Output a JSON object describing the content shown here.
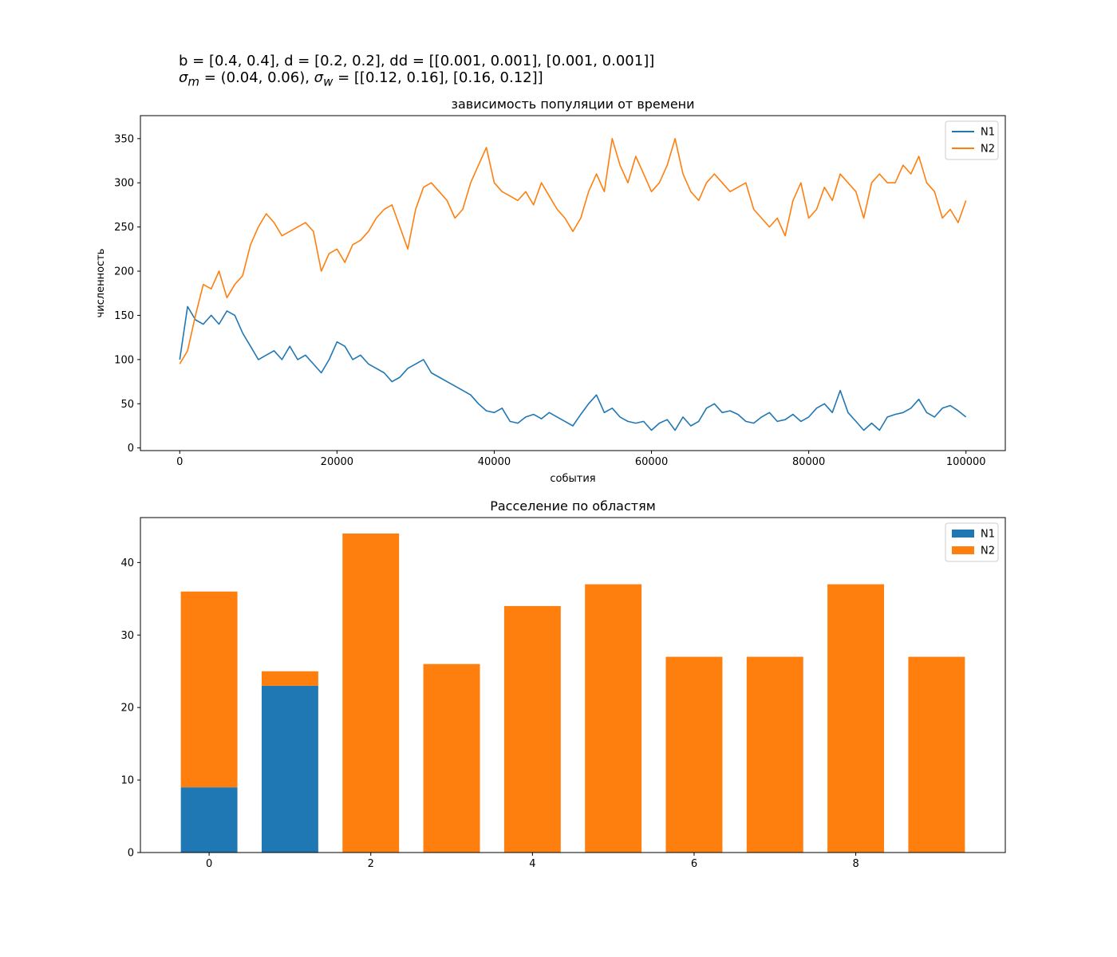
{
  "suptitle": {
    "line1": "b = [0.4, 0.4], d = [0.2, 0.2], dd = [[0.001, 0.001], [0.001, 0.001]]",
    "line2": {
      "sigma": "σ",
      "sub_m": "m",
      "eq_m": " = (0.04, 0.06), ",
      "sub_w": "w",
      "eq_w": " = [[0.12, 0.16], [0.16, 0.12]]"
    }
  },
  "colors": {
    "N1": "#1f77b4",
    "N2": "#ff7f0e"
  },
  "chart_data": [
    {
      "type": "line",
      "title": "зависимость популяции от времени",
      "xlabel": "события",
      "ylabel": "численность",
      "xlim": [
        -5000,
        105000
      ],
      "ylim": [
        -3,
        376
      ],
      "xticks": [
        0,
        20000,
        40000,
        60000,
        80000,
        100000
      ],
      "yticks": [
        0,
        50,
        100,
        150,
        200,
        250,
        300,
        350
      ],
      "legend": "top-right",
      "grid": false,
      "series": [
        {
          "name": "N1",
          "color": "#1f77b4",
          "x": [
            0,
            1000,
            2000,
            3000,
            4000,
            5000,
            6000,
            7000,
            8000,
            9000,
            10000,
            11000,
            12000,
            13000,
            14000,
            15000,
            16000,
            17000,
            18000,
            19000,
            20000,
            21000,
            22000,
            23000,
            24000,
            25000,
            26000,
            27000,
            28000,
            29000,
            30000,
            31000,
            32000,
            33000,
            34000,
            35000,
            36000,
            37000,
            38000,
            39000,
            40000,
            41000,
            42000,
            43000,
            44000,
            45000,
            46000,
            47000,
            48000,
            49000,
            50000,
            51000,
            52000,
            53000,
            54000,
            55000,
            56000,
            57000,
            58000,
            59000,
            60000,
            61000,
            62000,
            63000,
            64000,
            65000,
            66000,
            67000,
            68000,
            69000,
            70000,
            71000,
            72000,
            73000,
            74000,
            75000,
            76000,
            77000,
            78000,
            79000,
            80000,
            81000,
            82000,
            83000,
            84000,
            85000,
            86000,
            87000,
            88000,
            89000,
            90000,
            91000,
            92000,
            93000,
            94000,
            95000,
            96000,
            97000,
            98000,
            99000,
            100000
          ],
          "y": [
            100,
            160,
            145,
            140,
            150,
            140,
            155,
            150,
            130,
            115,
            100,
            105,
            110,
            100,
            115,
            100,
            105,
            95,
            85,
            100,
            120,
            115,
            100,
            105,
            95,
            90,
            85,
            75,
            80,
            90,
            95,
            100,
            85,
            80,
            75,
            70,
            65,
            60,
            50,
            42,
            40,
            45,
            30,
            28,
            35,
            38,
            33,
            40,
            35,
            30,
            25,
            38,
            50,
            60,
            40,
            45,
            35,
            30,
            28,
            30,
            20,
            28,
            32,
            20,
            35,
            25,
            30,
            45,
            50,
            40,
            42,
            38,
            30,
            28,
            35,
            40,
            30,
            32,
            38,
            30,
            35,
            45,
            50,
            40,
            65,
            40,
            30,
            20,
            28,
            20,
            35,
            38,
            40,
            45,
            55,
            40,
            35,
            45,
            48,
            42,
            35
          ]
        },
        {
          "name": "N2",
          "color": "#ff7f0e",
          "x": [
            0,
            1000,
            2000,
            3000,
            4000,
            5000,
            6000,
            7000,
            8000,
            9000,
            10000,
            11000,
            12000,
            13000,
            14000,
            15000,
            16000,
            17000,
            18000,
            19000,
            20000,
            21000,
            22000,
            23000,
            24000,
            25000,
            26000,
            27000,
            28000,
            29000,
            30000,
            31000,
            32000,
            33000,
            34000,
            35000,
            36000,
            37000,
            38000,
            39000,
            40000,
            41000,
            42000,
            43000,
            44000,
            45000,
            46000,
            47000,
            48000,
            49000,
            50000,
            51000,
            52000,
            53000,
            54000,
            55000,
            56000,
            57000,
            58000,
            59000,
            60000,
            61000,
            62000,
            63000,
            64000,
            65000,
            66000,
            67000,
            68000,
            69000,
            70000,
            71000,
            72000,
            73000,
            74000,
            75000,
            76000,
            77000,
            78000,
            79000,
            80000,
            81000,
            82000,
            83000,
            84000,
            85000,
            86000,
            87000,
            88000,
            89000,
            90000,
            91000,
            92000,
            93000,
            94000,
            95000,
            96000,
            97000,
            98000,
            99000,
            100000
          ],
          "y": [
            95,
            110,
            150,
            185,
            180,
            200,
            170,
            185,
            195,
            230,
            250,
            265,
            255,
            240,
            245,
            250,
            255,
            245,
            200,
            220,
            225,
            210,
            230,
            235,
            245,
            260,
            270,
            275,
            250,
            225,
            270,
            295,
            300,
            290,
            280,
            260,
            270,
            300,
            320,
            340,
            300,
            290,
            285,
            280,
            290,
            275,
            300,
            285,
            270,
            260,
            245,
            260,
            290,
            310,
            290,
            350,
            320,
            300,
            330,
            310,
            290,
            300,
            320,
            350,
            310,
            290,
            280,
            300,
            310,
            300,
            290,
            295,
            300,
            270,
            260,
            250,
            260,
            240,
            280,
            300,
            260,
            270,
            295,
            280,
            310,
            300,
            290,
            260,
            300,
            310,
            300,
            300,
            320,
            310,
            330,
            300,
            290,
            260,
            270,
            255,
            280
          ]
        }
      ]
    },
    {
      "type": "bar",
      "stacked": true,
      "title": "Расселение по областям",
      "xlabel": "",
      "ylabel": "",
      "xlim": [
        -0.85,
        9.85
      ],
      "ylim": [
        0,
        46.2
      ],
      "xticks": [
        0,
        2,
        4,
        6,
        8
      ],
      "yticks": [
        0,
        10,
        20,
        30,
        40
      ],
      "legend": "top-right",
      "grid": false,
      "categories": [
        0,
        1,
        2,
        3,
        4,
        5,
        6,
        7,
        8,
        9
      ],
      "series": [
        {
          "name": "N1",
          "color": "#1f77b4",
          "values": [
            9,
            23,
            0,
            0,
            0,
            0,
            0,
            0,
            0,
            0
          ]
        },
        {
          "name": "N2",
          "color": "#ff7f0e",
          "values": [
            27,
            2,
            44,
            26,
            34,
            37,
            27,
            27,
            37,
            27
          ]
        }
      ]
    }
  ]
}
